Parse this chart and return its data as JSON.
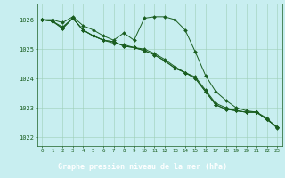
{
  "bg_color": "#c8eef0",
  "plot_bg_color": "#c8eef0",
  "bottom_bar_color": "#2d7a2d",
  "grid_color": "#9ecfb8",
  "line_color": "#1a5e20",
  "marker_color": "#1a5e20",
  "xlabel": "Graphe pression niveau de la mer (hPa)",
  "xlabel_color": "#ffffff",
  "tick_color": "#1a5e20",
  "ylim": [
    1021.7,
    1026.55
  ],
  "xlim": [
    -0.5,
    23.5
  ],
  "yticks": [
    1022,
    1023,
    1024,
    1025,
    1026
  ],
  "xticks": [
    0,
    1,
    2,
    3,
    4,
    5,
    6,
    7,
    8,
    9,
    10,
    11,
    12,
    13,
    14,
    15,
    16,
    17,
    18,
    19,
    20,
    21,
    22,
    23
  ],
  "series": [
    [
      1026.0,
      1026.0,
      1025.9,
      1026.1,
      1025.8,
      1025.65,
      1025.45,
      1025.3,
      1025.55,
      1025.3,
      1026.05,
      1026.1,
      1026.1,
      1026.0,
      1025.65,
      1024.9,
      1024.1,
      1023.55,
      1023.25,
      1023.0,
      1022.9,
      1022.85,
      1022.65,
      1022.3
    ],
    [
      1026.0,
      1025.95,
      1025.75,
      1026.05,
      1025.65,
      1025.45,
      1025.3,
      1025.2,
      1025.15,
      1025.05,
      1025.0,
      1024.85,
      1024.65,
      1024.4,
      1024.2,
      1024.05,
      1023.6,
      1023.15,
      1023.0,
      1022.9,
      1022.85,
      1022.85,
      1022.6,
      1022.35
    ],
    [
      1026.0,
      1025.95,
      1025.7,
      1026.05,
      1025.65,
      1025.45,
      1025.3,
      1025.25,
      1025.1,
      1025.05,
      1024.95,
      1024.8,
      1024.6,
      1024.35,
      1024.2,
      1024.0,
      1023.55,
      1023.1,
      1022.95,
      1022.9,
      1022.85,
      1022.85,
      1022.6,
      1022.35
    ],
    [
      1026.0,
      1025.95,
      1025.7,
      1026.05,
      1025.65,
      1025.45,
      1025.3,
      1025.25,
      1025.1,
      1025.05,
      1024.95,
      1024.8,
      1024.6,
      1024.35,
      1024.2,
      1024.0,
      1023.55,
      1023.1,
      1022.95,
      1022.9,
      1022.85,
      1022.85,
      1022.6,
      1022.35
    ]
  ]
}
